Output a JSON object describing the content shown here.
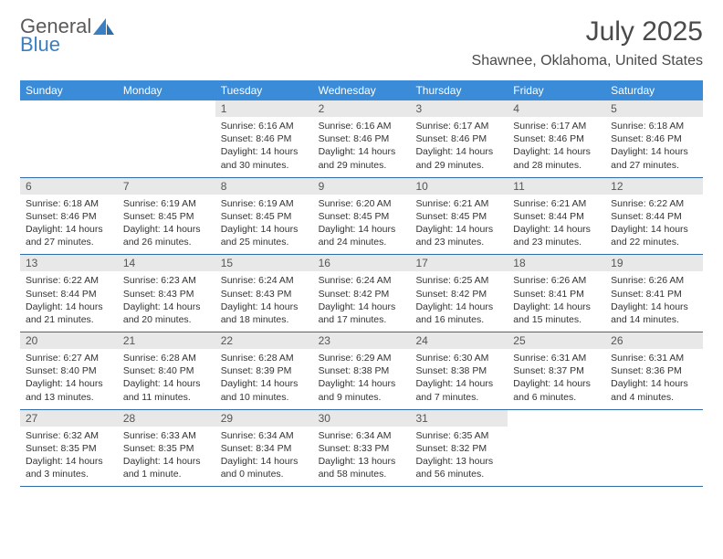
{
  "logo": {
    "text1": "General",
    "text2": "Blue"
  },
  "title": "July 2025",
  "location": "Shawnee, Oklahoma, United States",
  "colors": {
    "header_bg": "#3a8bd8",
    "header_text": "#ffffff",
    "daynum_bg": "#e8e8e8",
    "daynum_text": "#555555",
    "week_border": "#2f6ca8",
    "logo_gray": "#5a5a5a",
    "logo_blue": "#3a7fc4",
    "body_text": "#333333",
    "title_text": "#4a4a4a"
  },
  "weekdays": [
    "Sunday",
    "Monday",
    "Tuesday",
    "Wednesday",
    "Thursday",
    "Friday",
    "Saturday"
  ],
  "weeks": [
    [
      {
        "n": "",
        "lines": []
      },
      {
        "n": "",
        "lines": []
      },
      {
        "n": "1",
        "lines": [
          "Sunrise: 6:16 AM",
          "Sunset: 8:46 PM",
          "Daylight: 14 hours and 30 minutes."
        ]
      },
      {
        "n": "2",
        "lines": [
          "Sunrise: 6:16 AM",
          "Sunset: 8:46 PM",
          "Daylight: 14 hours and 29 minutes."
        ]
      },
      {
        "n": "3",
        "lines": [
          "Sunrise: 6:17 AM",
          "Sunset: 8:46 PM",
          "Daylight: 14 hours and 29 minutes."
        ]
      },
      {
        "n": "4",
        "lines": [
          "Sunrise: 6:17 AM",
          "Sunset: 8:46 PM",
          "Daylight: 14 hours and 28 minutes."
        ]
      },
      {
        "n": "5",
        "lines": [
          "Sunrise: 6:18 AM",
          "Sunset: 8:46 PM",
          "Daylight: 14 hours and 27 minutes."
        ]
      }
    ],
    [
      {
        "n": "6",
        "lines": [
          "Sunrise: 6:18 AM",
          "Sunset: 8:46 PM",
          "Daylight: 14 hours and 27 minutes."
        ]
      },
      {
        "n": "7",
        "lines": [
          "Sunrise: 6:19 AM",
          "Sunset: 8:45 PM",
          "Daylight: 14 hours and 26 minutes."
        ]
      },
      {
        "n": "8",
        "lines": [
          "Sunrise: 6:19 AM",
          "Sunset: 8:45 PM",
          "Daylight: 14 hours and 25 minutes."
        ]
      },
      {
        "n": "9",
        "lines": [
          "Sunrise: 6:20 AM",
          "Sunset: 8:45 PM",
          "Daylight: 14 hours and 24 minutes."
        ]
      },
      {
        "n": "10",
        "lines": [
          "Sunrise: 6:21 AM",
          "Sunset: 8:45 PM",
          "Daylight: 14 hours and 23 minutes."
        ]
      },
      {
        "n": "11",
        "lines": [
          "Sunrise: 6:21 AM",
          "Sunset: 8:44 PM",
          "Daylight: 14 hours and 23 minutes."
        ]
      },
      {
        "n": "12",
        "lines": [
          "Sunrise: 6:22 AM",
          "Sunset: 8:44 PM",
          "Daylight: 14 hours and 22 minutes."
        ]
      }
    ],
    [
      {
        "n": "13",
        "lines": [
          "Sunrise: 6:22 AM",
          "Sunset: 8:44 PM",
          "Daylight: 14 hours and 21 minutes."
        ]
      },
      {
        "n": "14",
        "lines": [
          "Sunrise: 6:23 AM",
          "Sunset: 8:43 PM",
          "Daylight: 14 hours and 20 minutes."
        ]
      },
      {
        "n": "15",
        "lines": [
          "Sunrise: 6:24 AM",
          "Sunset: 8:43 PM",
          "Daylight: 14 hours and 18 minutes."
        ]
      },
      {
        "n": "16",
        "lines": [
          "Sunrise: 6:24 AM",
          "Sunset: 8:42 PM",
          "Daylight: 14 hours and 17 minutes."
        ]
      },
      {
        "n": "17",
        "lines": [
          "Sunrise: 6:25 AM",
          "Sunset: 8:42 PM",
          "Daylight: 14 hours and 16 minutes."
        ]
      },
      {
        "n": "18",
        "lines": [
          "Sunrise: 6:26 AM",
          "Sunset: 8:41 PM",
          "Daylight: 14 hours and 15 minutes."
        ]
      },
      {
        "n": "19",
        "lines": [
          "Sunrise: 6:26 AM",
          "Sunset: 8:41 PM",
          "Daylight: 14 hours and 14 minutes."
        ]
      }
    ],
    [
      {
        "n": "20",
        "lines": [
          "Sunrise: 6:27 AM",
          "Sunset: 8:40 PM",
          "Daylight: 14 hours and 13 minutes."
        ]
      },
      {
        "n": "21",
        "lines": [
          "Sunrise: 6:28 AM",
          "Sunset: 8:40 PM",
          "Daylight: 14 hours and 11 minutes."
        ]
      },
      {
        "n": "22",
        "lines": [
          "Sunrise: 6:28 AM",
          "Sunset: 8:39 PM",
          "Daylight: 14 hours and 10 minutes."
        ]
      },
      {
        "n": "23",
        "lines": [
          "Sunrise: 6:29 AM",
          "Sunset: 8:38 PM",
          "Daylight: 14 hours and 9 minutes."
        ]
      },
      {
        "n": "24",
        "lines": [
          "Sunrise: 6:30 AM",
          "Sunset: 8:38 PM",
          "Daylight: 14 hours and 7 minutes."
        ]
      },
      {
        "n": "25",
        "lines": [
          "Sunrise: 6:31 AM",
          "Sunset: 8:37 PM",
          "Daylight: 14 hours and 6 minutes."
        ]
      },
      {
        "n": "26",
        "lines": [
          "Sunrise: 6:31 AM",
          "Sunset: 8:36 PM",
          "Daylight: 14 hours and 4 minutes."
        ]
      }
    ],
    [
      {
        "n": "27",
        "lines": [
          "Sunrise: 6:32 AM",
          "Sunset: 8:35 PM",
          "Daylight: 14 hours and 3 minutes."
        ]
      },
      {
        "n": "28",
        "lines": [
          "Sunrise: 6:33 AM",
          "Sunset: 8:35 PM",
          "Daylight: 14 hours and 1 minute."
        ]
      },
      {
        "n": "29",
        "lines": [
          "Sunrise: 6:34 AM",
          "Sunset: 8:34 PM",
          "Daylight: 14 hours and 0 minutes."
        ]
      },
      {
        "n": "30",
        "lines": [
          "Sunrise: 6:34 AM",
          "Sunset: 8:33 PM",
          "Daylight: 13 hours and 58 minutes."
        ]
      },
      {
        "n": "31",
        "lines": [
          "Sunrise: 6:35 AM",
          "Sunset: 8:32 PM",
          "Daylight: 13 hours and 56 minutes."
        ]
      },
      {
        "n": "",
        "lines": []
      },
      {
        "n": "",
        "lines": []
      }
    ]
  ]
}
